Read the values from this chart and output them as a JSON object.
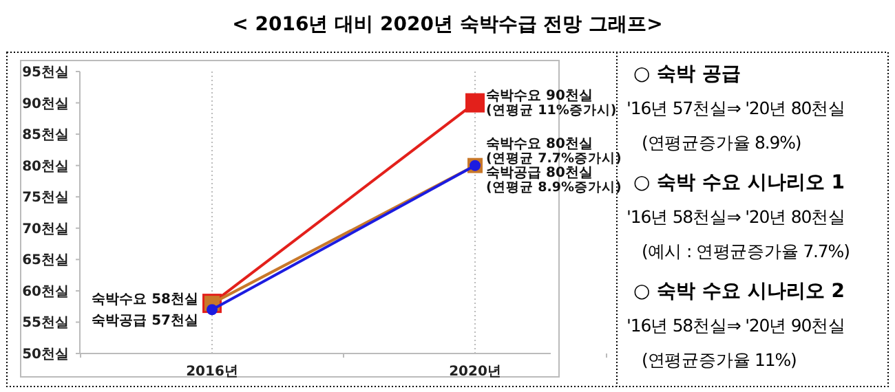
{
  "chart_data": {
    "type": "line",
    "title": "< 2016년 대비 2020년 숙박수급 전망 그래프>",
    "categories": [
      "2016년",
      "2020년"
    ],
    "series": [
      {
        "color": "#e3201b",
        "values": [
          58,
          90
        ],
        "marker": "square"
      },
      {
        "color": "#c8782a",
        "values": [
          58,
          80
        ],
        "marker": "square"
      },
      {
        "color": "#1c1ce0",
        "values": [
          57,
          80
        ],
        "marker": "circle"
      }
    ],
    "ylim": [
      50,
      95
    ],
    "yticks": [
      {
        "value": 50,
        "label": "50천실"
      },
      {
        "value": 55,
        "label": "55천실"
      },
      {
        "value": 60,
        "label": "60천실"
      },
      {
        "value": 65,
        "label": "65천실"
      },
      {
        "value": 70,
        "label": "70천실"
      },
      {
        "value": 75,
        "label": "75천실"
      },
      {
        "value": 80,
        "label": "80천실"
      },
      {
        "value": 85,
        "label": "85천실"
      },
      {
        "value": 90,
        "label": "90천실"
      },
      {
        "value": 95,
        "label": "95천실"
      }
    ],
    "grid": "x",
    "line_style": "solid",
    "annotations": [
      {
        "text": "숙박수요 58천실",
        "x": "2016년",
        "y": 58
      },
      {
        "text": "숙박공급 57천실",
        "x": "2016년",
        "y": 57
      },
      {
        "text": "숙박수요 90천실",
        "x": "2020년",
        "y": 90
      },
      {
        "text": "(연평균 11%증가시)",
        "x": "2020년",
        "y": 90
      },
      {
        "text": "숙박수요 80천실",
        "x": "2020년",
        "y": 80
      },
      {
        "text": "(연평균 7.7%증가시)",
        "x": "2020년",
        "y": 80
      },
      {
        "text": "숙박공급 80천실",
        "x": "2020년",
        "y": 80
      },
      {
        "text": "(연평균 8.9%증가시)",
        "x": "2020년",
        "y": 80
      },
      "○ 숙박 공급",
      "'16년 57천실⇒ '20년 80천실",
      "(연평균증가율 8.9%)",
      "○ 숙박 수요 시나리오 1",
      "'16년 58천실⇒ '20년 80천실",
      "(예시 : 연평균증가율 7.7%)",
      "○ 숙박 수요 시나리오 2",
      "'16년 58천실⇒ '20년 90천실",
      "(연평균증가율 11%)"
    ]
  }
}
